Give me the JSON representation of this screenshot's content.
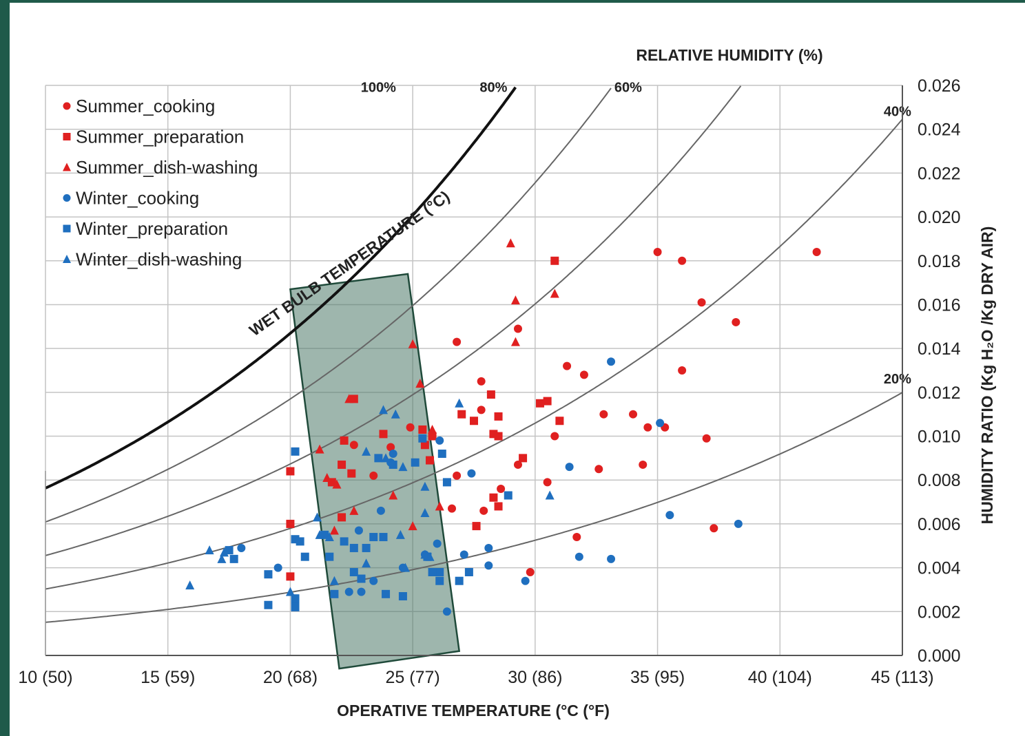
{
  "chart_data": {
    "type": "scatter",
    "title": "",
    "xlabel": "OPERATIVE TEMPERATURE (°C (°F)",
    "ylabel": "HUMIDITY RATIO (Kg H₂O /Kg DRY AIR)",
    "xlim": [
      10,
      45
    ],
    "ylim": [
      0,
      0.026
    ],
    "x_ticks": [
      {
        "value": 10,
        "label": "10 (50)"
      },
      {
        "value": 15,
        "label": "15 (59)"
      },
      {
        "value": 20,
        "label": "20 (68)"
      },
      {
        "value": 25,
        "label": "25 (77)"
      },
      {
        "value": 30,
        "label": "30 (86)"
      },
      {
        "value": 35,
        "label": "35 (95)"
      },
      {
        "value": 40,
        "label": "40 (104)"
      },
      {
        "value": 45,
        "label": "45 (113)"
      }
    ],
    "y_ticks": [
      {
        "value": 0.0,
        "label": "0.000"
      },
      {
        "value": 0.002,
        "label": "0.002"
      },
      {
        "value": 0.004,
        "label": "0.004"
      },
      {
        "value": 0.006,
        "label": "0.006"
      },
      {
        "value": 0.008,
        "label": "0.008"
      },
      {
        "value": 0.01,
        "label": "0.010"
      },
      {
        "value": 0.012,
        "label": "0.012"
      },
      {
        "value": 0.014,
        "label": "0.014"
      },
      {
        "value": 0.016,
        "label": "0.016"
      },
      {
        "value": 0.018,
        "label": "0.018"
      },
      {
        "value": 0.02,
        "label": "0.020"
      },
      {
        "value": 0.022,
        "label": "0.022"
      },
      {
        "value": 0.024,
        "label": "0.024"
      },
      {
        "value": 0.026,
        "label": "0.026"
      }
    ],
    "grid": true,
    "legend_position": "top-left",
    "rh_title": "RELATIVE HUMIDITY (%)",
    "wet_bulb_label": "WET BULB TEMPERATURE (°C)",
    "rh_curves": [
      {
        "label": "100%",
        "rh": 100
      },
      {
        "label": "80%",
        "rh": 80
      },
      {
        "label": "60%",
        "rh": 60
      },
      {
        "label": "40%",
        "rh": 40
      },
      {
        "label": "20%",
        "rh": 20
      }
    ],
    "comfort_zone": {
      "polygon": [
        [
          20.0,
          0.0167
        ],
        [
          24.8,
          0.0174
        ],
        [
          26.9,
          0.0002
        ],
        [
          22.0,
          -0.0006
        ]
      ],
      "color": "#4f7a6a"
    },
    "series": [
      {
        "name": "Summer_cooking",
        "color": "#e02020",
        "marker": "circle",
        "points": [
          [
            35,
            0.0184
          ],
          [
            36,
            0.018
          ],
          [
            41.5,
            0.0184
          ],
          [
            36.8,
            0.0161
          ],
          [
            38.2,
            0.0152
          ],
          [
            29.3,
            0.0149
          ],
          [
            26.8,
            0.0143
          ],
          [
            31.3,
            0.0132
          ],
          [
            32,
            0.0128
          ],
          [
            36,
            0.013
          ],
          [
            27.8,
            0.0125
          ],
          [
            27.8,
            0.0112
          ],
          [
            32.8,
            0.011
          ],
          [
            34,
            0.011
          ],
          [
            34.6,
            0.0104
          ],
          [
            35.3,
            0.0104
          ],
          [
            37,
            0.0099
          ],
          [
            30.8,
            0.01
          ],
          [
            32.6,
            0.0085
          ],
          [
            34.4,
            0.0087
          ],
          [
            30.5,
            0.0079
          ],
          [
            26.8,
            0.0082
          ],
          [
            29.3,
            0.0087
          ],
          [
            28.6,
            0.0076
          ],
          [
            27.9,
            0.0066
          ],
          [
            26.6,
            0.0067
          ],
          [
            31.7,
            0.0054
          ],
          [
            37.3,
            0.0058
          ],
          [
            29.8,
            0.0038
          ],
          [
            24.1,
            0.0095
          ],
          [
            24.9,
            0.0104
          ],
          [
            22.6,
            0.0096
          ],
          [
            23.4,
            0.0082
          ]
        ]
      },
      {
        "name": "Summer_preparation",
        "color": "#e02020",
        "marker": "square",
        "points": [
          [
            30.8,
            0.018
          ],
          [
            28.2,
            0.0119
          ],
          [
            30.2,
            0.0115
          ],
          [
            30.5,
            0.0116
          ],
          [
            27,
            0.011
          ],
          [
            27.5,
            0.0107
          ],
          [
            28.5,
            0.0109
          ],
          [
            31,
            0.0107
          ],
          [
            28.3,
            0.0101
          ],
          [
            28.5,
            0.01
          ],
          [
            29.5,
            0.009
          ],
          [
            28.3,
            0.0072
          ],
          [
            28.5,
            0.0068
          ],
          [
            27.6,
            0.0059
          ],
          [
            20,
            0.0084
          ],
          [
            20,
            0.006
          ],
          [
            20,
            0.0036
          ],
          [
            22.6,
            0.0117
          ],
          [
            22.2,
            0.0098
          ],
          [
            23.8,
            0.0101
          ],
          [
            25.4,
            0.0103
          ],
          [
            25.8,
            0.01
          ],
          [
            22.1,
            0.0087
          ],
          [
            21.7,
            0.0079
          ],
          [
            22.5,
            0.0083
          ],
          [
            25.5,
            0.0096
          ],
          [
            25.7,
            0.0089
          ],
          [
            22.1,
            0.0063
          ]
        ]
      },
      {
        "name": "Summer_dish-washing",
        "color": "#e02020",
        "marker": "triangle",
        "points": [
          [
            29,
            0.0188
          ],
          [
            29.2,
            0.0162
          ],
          [
            30.8,
            0.0165
          ],
          [
            29.2,
            0.0143
          ],
          [
            25,
            0.0142
          ],
          [
            25.3,
            0.0124
          ],
          [
            22.4,
            0.0117
          ],
          [
            21.2,
            0.0094
          ],
          [
            21.5,
            0.0081
          ],
          [
            21.9,
            0.0078
          ],
          [
            24.2,
            0.0073
          ],
          [
            25,
            0.0059
          ],
          [
            25.8,
            0.0103
          ],
          [
            22.6,
            0.0066
          ],
          [
            26.1,
            0.0068
          ],
          [
            21.8,
            0.0057
          ]
        ]
      },
      {
        "name": "Winter_cooking",
        "color": "#1f6fbf",
        "marker": "circle",
        "points": [
          [
            33.1,
            0.0134
          ],
          [
            35.1,
            0.0106
          ],
          [
            26.1,
            0.0098
          ],
          [
            27.4,
            0.0083
          ],
          [
            31.4,
            0.0086
          ],
          [
            35.5,
            0.0064
          ],
          [
            38.3,
            0.006
          ],
          [
            31.8,
            0.0045
          ],
          [
            33.1,
            0.0044
          ],
          [
            27.1,
            0.0046
          ],
          [
            28.1,
            0.0049
          ],
          [
            28.1,
            0.0041
          ],
          [
            29.6,
            0.0034
          ],
          [
            26.4,
            0.002
          ],
          [
            26,
            0.0051
          ],
          [
            25.5,
            0.0046
          ],
          [
            23.7,
            0.0066
          ],
          [
            22.8,
            0.0057
          ],
          [
            24.6,
            0.004
          ],
          [
            23.4,
            0.0034
          ],
          [
            22.4,
            0.0029
          ],
          [
            22.9,
            0.0029
          ],
          [
            18,
            0.0049
          ],
          [
            19.5,
            0.004
          ],
          [
            20.2,
            0.0024
          ],
          [
            24.2,
            0.0092
          ],
          [
            24.1,
            0.0088
          ]
        ]
      },
      {
        "name": "Winter_preparation",
        "color": "#1f6fbf",
        "marker": "square",
        "points": [
          [
            20.2,
            0.0093
          ],
          [
            26.2,
            0.0092
          ],
          [
            26.4,
            0.0079
          ],
          [
            28.9,
            0.0073
          ],
          [
            25.4,
            0.0099
          ],
          [
            25.1,
            0.0088
          ],
          [
            23.6,
            0.009
          ],
          [
            24.2,
            0.0087
          ],
          [
            20.2,
            0.0053
          ],
          [
            20.4,
            0.0052
          ],
          [
            20.6,
            0.0045
          ],
          [
            21.6,
            0.0045
          ],
          [
            21.4,
            0.0055
          ],
          [
            22.2,
            0.0052
          ],
          [
            22.6,
            0.0049
          ],
          [
            23.1,
            0.0049
          ],
          [
            23.4,
            0.0054
          ],
          [
            23.8,
            0.0054
          ],
          [
            22.6,
            0.0038
          ],
          [
            22.9,
            0.0035
          ],
          [
            26.1,
            0.0038
          ],
          [
            25.8,
            0.0038
          ],
          [
            26.9,
            0.0034
          ],
          [
            27.3,
            0.0038
          ],
          [
            25.6,
            0.0045
          ],
          [
            17.5,
            0.0048
          ],
          [
            17.7,
            0.0044
          ],
          [
            19.1,
            0.0037
          ],
          [
            19.1,
            0.0023
          ],
          [
            20.2,
            0.0022
          ],
          [
            20.2,
            0.0026
          ],
          [
            24.6,
            0.0027
          ],
          [
            23.9,
            0.0028
          ],
          [
            21.8,
            0.0028
          ],
          [
            26.1,
            0.0034
          ]
        ]
      },
      {
        "name": "Winter_dish-washing",
        "color": "#1f6fbf",
        "marker": "triangle",
        "points": [
          [
            26.9,
            0.0115
          ],
          [
            23.8,
            0.0112
          ],
          [
            24.3,
            0.011
          ],
          [
            23.1,
            0.0093
          ],
          [
            23.9,
            0.009
          ],
          [
            24.6,
            0.0086
          ],
          [
            25.5,
            0.0077
          ],
          [
            30.6,
            0.0073
          ],
          [
            25.5,
            0.0065
          ],
          [
            21.1,
            0.0063
          ],
          [
            21.2,
            0.0055
          ],
          [
            21.6,
            0.0054
          ],
          [
            24.5,
            0.0055
          ],
          [
            23.1,
            0.0042
          ],
          [
            24.7,
            0.004
          ],
          [
            25.5,
            0.0046
          ],
          [
            25.7,
            0.0045
          ],
          [
            16.7,
            0.0048
          ],
          [
            17.2,
            0.0044
          ],
          [
            17.3,
            0.0047
          ],
          [
            15.9,
            0.0032
          ],
          [
            20,
            0.0029
          ],
          [
            21.8,
            0.0034
          ]
        ]
      }
    ]
  }
}
